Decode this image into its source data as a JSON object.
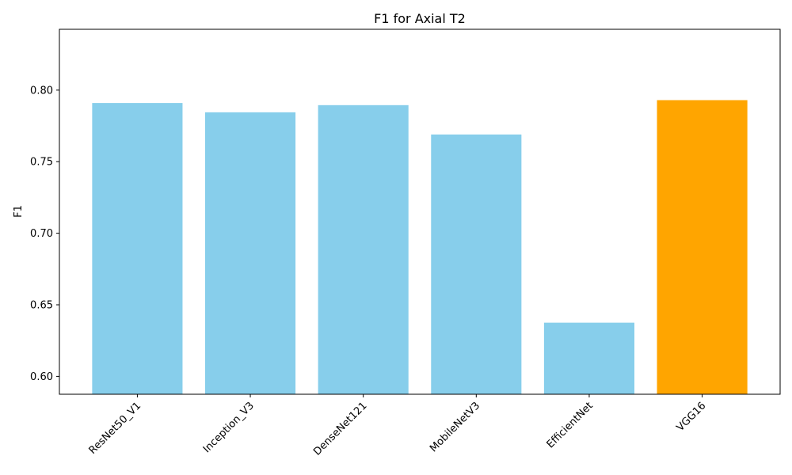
{
  "chart_data": {
    "type": "bar",
    "title": "F1 for Axial T2",
    "xlabel": "",
    "ylabel": "F1",
    "categories": [
      "ResNet50_V1",
      "Inception_V3",
      "DenseNet121",
      "MobileNetV3",
      "EfficientNet",
      "VGG16"
    ],
    "values": [
      0.791,
      0.7845,
      0.7895,
      0.769,
      0.6375,
      0.793
    ],
    "highlight_index": 5,
    "colors": {
      "bar": "#87ceeb",
      "highlight": "#ffa500",
      "axis": "#000000"
    },
    "ylim": [
      0.5875,
      0.8425
    ],
    "yticks": [
      0.6,
      0.65,
      0.7,
      0.75,
      0.8
    ],
    "ytick_labels": [
      "0.60",
      "0.65",
      "0.70",
      "0.75",
      "0.80"
    ],
    "grid": false,
    "legend": "none"
  }
}
